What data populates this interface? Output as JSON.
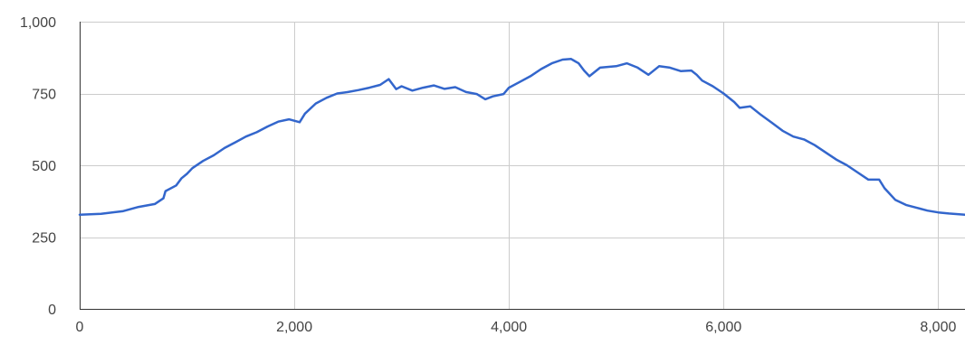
{
  "chart_data": {
    "type": "line",
    "title": "",
    "xlabel": "",
    "ylabel": "",
    "xlim": [
      0,
      8250
    ],
    "ylim": [
      0,
      1000
    ],
    "grid": true,
    "legend": "none",
    "x_ticks": [
      {
        "value": 0,
        "label": "0"
      },
      {
        "value": 2000,
        "label": "2,000"
      },
      {
        "value": 4000,
        "label": "4,000"
      },
      {
        "value": 6000,
        "label": "6,000"
      },
      {
        "value": 8000,
        "label": "8,000"
      }
    ],
    "y_ticks": [
      {
        "value": 0,
        "label": "0"
      },
      {
        "value": 250,
        "label": "250"
      },
      {
        "value": 500,
        "label": "500"
      },
      {
        "value": 750,
        "label": "750"
      },
      {
        "value": 1000,
        "label": "1,000"
      }
    ],
    "series": [
      {
        "color": "#3366cc",
        "points": [
          [
            0,
            328
          ],
          [
            200,
            331
          ],
          [
            400,
            340
          ],
          [
            550,
            355
          ],
          [
            700,
            365
          ],
          [
            780,
            385
          ],
          [
            800,
            410
          ],
          [
            900,
            430
          ],
          [
            950,
            455
          ],
          [
            1000,
            470
          ],
          [
            1050,
            490
          ],
          [
            1150,
            515
          ],
          [
            1250,
            535
          ],
          [
            1350,
            560
          ],
          [
            1450,
            580
          ],
          [
            1550,
            600
          ],
          [
            1650,
            615
          ],
          [
            1750,
            635
          ],
          [
            1850,
            652
          ],
          [
            1950,
            660
          ],
          [
            2000,
            655
          ],
          [
            2050,
            650
          ],
          [
            2100,
            680
          ],
          [
            2200,
            715
          ],
          [
            2300,
            735
          ],
          [
            2400,
            750
          ],
          [
            2500,
            755
          ],
          [
            2600,
            762
          ],
          [
            2700,
            770
          ],
          [
            2800,
            780
          ],
          [
            2880,
            800
          ],
          [
            2950,
            765
          ],
          [
            3000,
            775
          ],
          [
            3100,
            760
          ],
          [
            3200,
            770
          ],
          [
            3300,
            778
          ],
          [
            3400,
            766
          ],
          [
            3500,
            772
          ],
          [
            3600,
            755
          ],
          [
            3700,
            748
          ],
          [
            3780,
            730
          ],
          [
            3850,
            740
          ],
          [
            3950,
            748
          ],
          [
            4000,
            770
          ],
          [
            4100,
            790
          ],
          [
            4200,
            810
          ],
          [
            4300,
            835
          ],
          [
            4400,
            855
          ],
          [
            4500,
            868
          ],
          [
            4580,
            870
          ],
          [
            4650,
            855
          ],
          [
            4700,
            830
          ],
          [
            4750,
            810
          ],
          [
            4850,
            840
          ],
          [
            5000,
            845
          ],
          [
            5100,
            855
          ],
          [
            5200,
            840
          ],
          [
            5300,
            815
          ],
          [
            5400,
            845
          ],
          [
            5500,
            840
          ],
          [
            5600,
            828
          ],
          [
            5700,
            830
          ],
          [
            5750,
            815
          ],
          [
            5800,
            795
          ],
          [
            5900,
            775
          ],
          [
            6000,
            750
          ],
          [
            6100,
            720
          ],
          [
            6150,
            700
          ],
          [
            6250,
            705
          ],
          [
            6350,
            675
          ],
          [
            6450,
            648
          ],
          [
            6550,
            620
          ],
          [
            6650,
            600
          ],
          [
            6750,
            590
          ],
          [
            6850,
            570
          ],
          [
            6950,
            545
          ],
          [
            7050,
            520
          ],
          [
            7150,
            500
          ],
          [
            7250,
            475
          ],
          [
            7350,
            450
          ],
          [
            7450,
            450
          ],
          [
            7500,
            420
          ],
          [
            7600,
            380
          ],
          [
            7700,
            362
          ],
          [
            7800,
            352
          ],
          [
            7900,
            342
          ],
          [
            8000,
            336
          ],
          [
            8100,
            332
          ],
          [
            8250,
            328
          ]
        ]
      }
    ]
  }
}
